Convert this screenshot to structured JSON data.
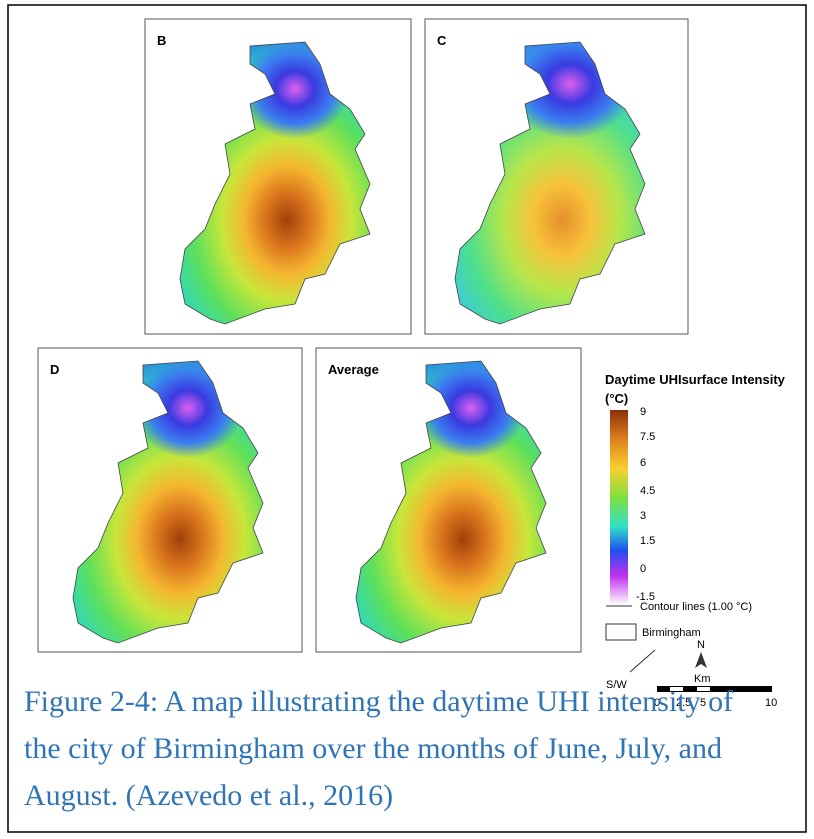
{
  "panels": [
    {
      "label": "B"
    },
    {
      "label": "C"
    },
    {
      "label": "D"
    },
    {
      "label": "Average"
    }
  ],
  "legend": {
    "title": [
      "Daytime UHIsurface Intensity",
      "(°C)"
    ],
    "ticks": [
      "9",
      "7.5",
      "6",
      "4.5",
      "3",
      "1.5",
      "0",
      "-1.5"
    ],
    "contour": "Contour lines (1.00 °C)",
    "boundary": "Birmingham"
  },
  "scale": {
    "direction": "S/W",
    "north": "N",
    "unit": "Km",
    "ticks": [
      "0",
      "2.5",
      "5",
      "10"
    ]
  },
  "caption": [
    "Figure 2-4: A map illustrating the daytime UHI intensity of",
    "the city of Birmingham over the months of June, July, and",
    "August. (Azevedo et al., 2016)"
  ]
}
